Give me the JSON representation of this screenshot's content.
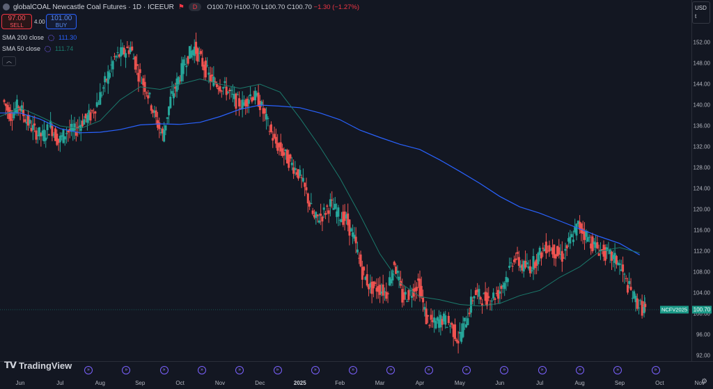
{
  "header": {
    "title": "globalCOAL Newcastle Coal Futures · 1D · ICEEUR",
    "d_badge": "D",
    "ohlc": {
      "o_label": "O",
      "o": "100.70",
      "h_label": "H",
      "h": "100.70",
      "l_label": "L",
      "l": "100.70",
      "c_label": "C",
      "c": "100.70",
      "change": "−1.30 (−1.27%)"
    }
  },
  "trade": {
    "sell_price": "97.00",
    "sell_label": "SELL",
    "spread": "4.00",
    "buy_price": "101.00",
    "buy_label": "BUY"
  },
  "indicators": [
    {
      "name": "SMA 200 close",
      "value": "111.30",
      "color": "#2962ff"
    },
    {
      "name": "SMA 50 close",
      "value": "111.74",
      "color": "#1b7a6c"
    }
  ],
  "currency": {
    "label": "USD",
    "sub": "t"
  },
  "logo": "TradingView",
  "last_price_tag": {
    "symbol": "NCFV2025",
    "price": "100.70"
  },
  "colors": {
    "background": "#131722",
    "up": "#26a69a",
    "down": "#ef5350",
    "sma200": "#2962ff",
    "sma50": "#1b7a6c",
    "event": "#7b61ff"
  },
  "event_icon": "double-chevron-right-icon",
  "events_count": 16,
  "chart_data": {
    "type": "candlestick",
    "y_ticks": [
      "152.00",
      "148.00",
      "144.00",
      "140.00",
      "136.00",
      "132.00",
      "128.00",
      "124.00",
      "120.00",
      "116.00",
      "112.00",
      "108.00",
      "104.00",
      "100.00",
      "96.00",
      "92.00"
    ],
    "ylim": [
      90,
      156
    ],
    "x_labels": [
      {
        "label": "Jun",
        "x_month": 0
      },
      {
        "label": "Jul",
        "x_month": 1
      },
      {
        "label": "Aug",
        "x_month": 2
      },
      {
        "label": "Sep",
        "x_month": 3
      },
      {
        "label": "Oct",
        "x_month": 4
      },
      {
        "label": "Nov",
        "x_month": 5
      },
      {
        "label": "Dec",
        "x_month": 6
      },
      {
        "label": "2025",
        "x_month": 7
      },
      {
        "label": "Feb",
        "x_month": 8
      },
      {
        "label": "Mar",
        "x_month": 9
      },
      {
        "label": "Apr",
        "x_month": 10
      },
      {
        "label": "May",
        "x_month": 11
      },
      {
        "label": "Jun",
        "x_month": 12
      },
      {
        "label": "Jul",
        "x_month": 13
      },
      {
        "label": "Aug",
        "x_month": 14
      },
      {
        "label": "Sep",
        "x_month": 15
      },
      {
        "label": "Oct",
        "x_month": 16
      },
      {
        "label": "Nov",
        "x_month": 17
      }
    ],
    "close_series": [
      [
        -0.4,
        141
      ],
      [
        -0.2,
        138
      ],
      [
        0.0,
        140
      ],
      [
        0.2,
        137
      ],
      [
        0.4,
        135
      ],
      [
        0.6,
        134
      ],
      [
        0.8,
        136
      ],
      [
        1.0,
        133
      ],
      [
        1.2,
        135
      ],
      [
        1.4,
        135
      ],
      [
        1.6,
        137
      ],
      [
        1.8,
        138
      ],
      [
        2.0,
        141
      ],
      [
        2.2,
        145
      ],
      [
        2.4,
        149
      ],
      [
        2.6,
        150
      ],
      [
        2.8,
        151
      ],
      [
        3.0,
        146
      ],
      [
        3.2,
        143
      ],
      [
        3.4,
        138
      ],
      [
        3.6,
        134
      ],
      [
        3.8,
        141
      ],
      [
        4.0,
        145
      ],
      [
        4.2,
        149
      ],
      [
        4.4,
        151
      ],
      [
        4.6,
        148
      ],
      [
        4.8,
        145
      ],
      [
        5.0,
        144
      ],
      [
        5.2,
        143
      ],
      [
        5.4,
        141
      ],
      [
        5.6,
        140
      ],
      [
        5.8,
        142
      ],
      [
        6.0,
        141
      ],
      [
        6.2,
        137
      ],
      [
        6.4,
        133
      ],
      [
        6.6,
        131
      ],
      [
        6.8,
        129
      ],
      [
        7.0,
        127
      ],
      [
        7.2,
        123
      ],
      [
        7.4,
        118
      ],
      [
        7.6,
        119
      ],
      [
        7.8,
        121
      ],
      [
        8.0,
        119
      ],
      [
        8.2,
        118
      ],
      [
        8.4,
        114
      ],
      [
        8.6,
        108
      ],
      [
        8.8,
        105
      ],
      [
        9.0,
        105
      ],
      [
        9.2,
        104
      ],
      [
        9.4,
        110
      ],
      [
        9.6,
        103
      ],
      [
        9.8,
        104
      ],
      [
        10.0,
        106
      ],
      [
        10.2,
        99
      ],
      [
        10.4,
        98
      ],
      [
        10.6,
        99
      ],
      [
        10.8,
        98
      ],
      [
        11.0,
        95
      ],
      [
        11.2,
        99
      ],
      [
        11.4,
        104
      ],
      [
        11.6,
        103
      ],
      [
        11.8,
        103
      ],
      [
        12.0,
        104
      ],
      [
        12.2,
        107
      ],
      [
        12.4,
        111
      ],
      [
        12.6,
        109
      ],
      [
        12.8,
        109
      ],
      [
        13.0,
        111
      ],
      [
        13.2,
        113
      ],
      [
        13.4,
        112
      ],
      [
        13.6,
        111
      ],
      [
        13.8,
        114
      ],
      [
        14.0,
        117
      ],
      [
        14.2,
        115
      ],
      [
        14.4,
        113
      ],
      [
        14.6,
        112
      ],
      [
        14.8,
        111
      ],
      [
        15.0,
        110
      ],
      [
        15.2,
        106
      ],
      [
        15.4,
        103
      ],
      [
        15.6,
        101
      ],
      [
        15.65,
        100.7
      ]
    ],
    "series": [
      {
        "name": "SMA 200 close",
        "points": [
          [
            -0.6,
            138.5
          ],
          [
            0.0,
            138.5
          ],
          [
            0.5,
            137.3
          ],
          [
            1.0,
            135.5
          ],
          [
            1.5,
            134.7
          ],
          [
            2.0,
            134.8
          ],
          [
            2.5,
            135.3
          ],
          [
            3.0,
            136.2
          ],
          [
            3.5,
            136.4
          ],
          [
            4.0,
            136.3
          ],
          [
            4.5,
            136.7
          ],
          [
            5.0,
            137.8
          ],
          [
            5.5,
            139.2
          ],
          [
            6.0,
            140.0
          ],
          [
            6.5,
            139.8
          ],
          [
            7.0,
            139.5
          ],
          [
            7.5,
            138.5
          ],
          [
            8.0,
            137.2
          ],
          [
            8.5,
            135.2
          ],
          [
            9.0,
            133.8
          ],
          [
            9.5,
            132.5
          ],
          [
            10.0,
            131.5
          ],
          [
            10.5,
            129.5
          ],
          [
            11.0,
            127.3
          ],
          [
            11.5,
            125.0
          ],
          [
            12.0,
            122.5
          ],
          [
            12.5,
            120.5
          ],
          [
            13.0,
            119.3
          ],
          [
            13.5,
            117.8
          ],
          [
            14.0,
            116.3
          ],
          [
            14.5,
            114.8
          ],
          [
            15.0,
            113.5
          ],
          [
            15.5,
            111.3
          ]
        ]
      },
      {
        "name": "SMA 50 close",
        "points": [
          [
            -0.6,
            137.5
          ],
          [
            0.0,
            139.5
          ],
          [
            0.5,
            137.8
          ],
          [
            1.0,
            136.0
          ],
          [
            1.5,
            135.5
          ],
          [
            2.0,
            137.0
          ],
          [
            2.5,
            141.0
          ],
          [
            3.0,
            143.5
          ],
          [
            3.5,
            143.0
          ],
          [
            4.0,
            144.0
          ],
          [
            4.5,
            145.0
          ],
          [
            5.0,
            144.0
          ],
          [
            5.5,
            143.2
          ],
          [
            6.0,
            144.0
          ],
          [
            6.5,
            142.5
          ],
          [
            7.0,
            137.5
          ],
          [
            7.5,
            132.0
          ],
          [
            8.0,
            126.0
          ],
          [
            8.5,
            119.0
          ],
          [
            9.0,
            111.5
          ],
          [
            9.5,
            106.0
          ],
          [
            10.0,
            103.3
          ],
          [
            10.5,
            102.7
          ],
          [
            11.0,
            101.8
          ],
          [
            11.5,
            101.5
          ],
          [
            12.0,
            102.0
          ],
          [
            12.5,
            103.5
          ],
          [
            13.0,
            104.5
          ],
          [
            13.5,
            107.0
          ],
          [
            14.0,
            109.0
          ],
          [
            14.5,
            112.0
          ],
          [
            15.0,
            112.7
          ],
          [
            15.5,
            111.7
          ]
        ]
      }
    ]
  }
}
